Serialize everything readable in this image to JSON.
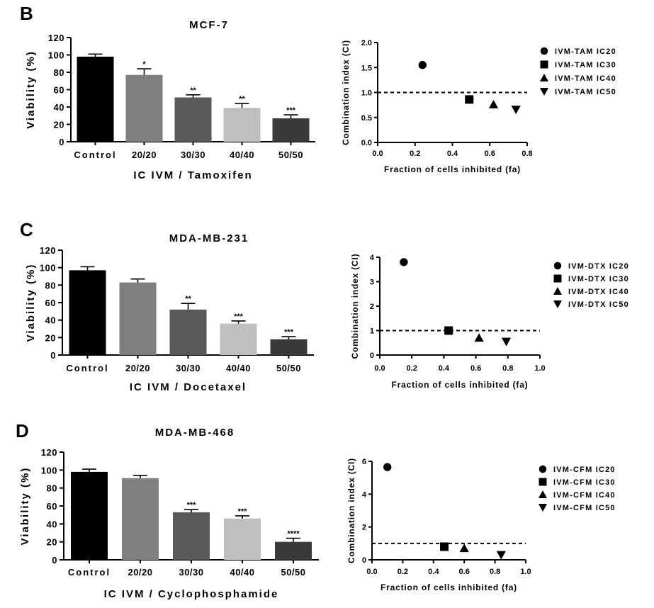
{
  "chart_data": [
    {
      "type": "bar",
      "panel_label": "B",
      "title": "MCF-7",
      "categories": [
        "Control",
        "20/20",
        "30/30",
        "40/40",
        "50/50"
      ],
      "values": [
        98,
        77,
        51,
        39,
        27
      ],
      "errors": [
        3,
        7,
        3,
        5,
        4
      ],
      "significance": [
        "",
        "*",
        "**",
        "**",
        "***"
      ],
      "colors": [
        "#000000",
        "#7f7f7f",
        "#595959",
        "#bfbfbf",
        "#3a3a3a"
      ],
      "xlabel": "IC IVM / Tamoxifen",
      "ylabel": "Viability (%)",
      "ylim": [
        0,
        120
      ],
      "yticks": [
        "0",
        "20",
        "40",
        "60",
        "80",
        "100",
        "120"
      ]
    },
    {
      "type": "scatter",
      "panel_label": "B",
      "xlabel": "Fraction of cells inhibited (fa)",
      "ylabel": "Combination index (CI)",
      "xlim": [
        0,
        0.8
      ],
      "ylim": [
        0,
        2.0
      ],
      "xticks": [
        "0.0",
        "0.2",
        "0.4",
        "0.6",
        "0.8"
      ],
      "yticks": [
        "0.0",
        "0.5",
        "1.0",
        "1.5",
        "2.0"
      ],
      "reference_line": 1.0,
      "points": [
        {
          "label": "IVM-TAM IC20",
          "marker": "circle",
          "x": 0.24,
          "y": 1.55
        },
        {
          "label": "IVM-TAM IC30",
          "marker": "square",
          "x": 0.49,
          "y": 0.86
        },
        {
          "label": "IVM-TAM IC40",
          "marker": "triangle-up",
          "x": 0.62,
          "y": 0.76
        },
        {
          "label": "IVM-TAM IC50",
          "marker": "triangle-down",
          "x": 0.74,
          "y": 0.66
        }
      ]
    },
    {
      "type": "bar",
      "panel_label": "C",
      "title": "MDA-MB-231",
      "categories": [
        "Control",
        "20/20",
        "30/30",
        "40/40",
        "50/50"
      ],
      "values": [
        97,
        83,
        52,
        36,
        18
      ],
      "errors": [
        4,
        4,
        7,
        3,
        3
      ],
      "significance": [
        "",
        "",
        "**",
        "***",
        "***"
      ],
      "colors": [
        "#000000",
        "#7f7f7f",
        "#595959",
        "#bfbfbf",
        "#3a3a3a"
      ],
      "xlabel": "IC IVM / Docetaxel",
      "ylabel": "Viability (%)",
      "ylim": [
        0,
        120
      ],
      "yticks": [
        "0",
        "20",
        "40",
        "60",
        "80",
        "100",
        "120"
      ]
    },
    {
      "type": "scatter",
      "panel_label": "C",
      "xlabel": "Fraction of cells inhibited (fa)",
      "ylabel": "Combination index (CI)",
      "xlim": [
        0,
        1.0
      ],
      "ylim": [
        0,
        4
      ],
      "xticks": [
        "0.0",
        "0.2",
        "0.4",
        "0.6",
        "0.8",
        "1.0"
      ],
      "yticks": [
        "0",
        "1",
        "2",
        "3",
        "4"
      ],
      "reference_line": 1,
      "points": [
        {
          "label": "IVM-DTX IC20",
          "marker": "circle",
          "x": 0.15,
          "y": 3.8
        },
        {
          "label": "IVM-DTX IC30",
          "marker": "square",
          "x": 0.43,
          "y": 1.0
        },
        {
          "label": "IVM-DTX IC40",
          "marker": "triangle-up",
          "x": 0.62,
          "y": 0.7
        },
        {
          "label": "IVM-DTX IC50",
          "marker": "triangle-down",
          "x": 0.79,
          "y": 0.55
        }
      ]
    },
    {
      "type": "bar",
      "panel_label": "D",
      "title": "MDA-MB-468",
      "categories": [
        "Control",
        "20/20",
        "30/30",
        "40/40",
        "50/50"
      ],
      "values": [
        98,
        91,
        53,
        46,
        20
      ],
      "errors": [
        3,
        3,
        3,
        3,
        4
      ],
      "significance": [
        "",
        "",
        "***",
        "***",
        "****"
      ],
      "colors": [
        "#000000",
        "#7f7f7f",
        "#595959",
        "#bfbfbf",
        "#3a3a3a"
      ],
      "xlabel": "IC IVM / Cyclophosphamide",
      "ylabel": "Viability (%)",
      "ylim": [
        0,
        120
      ],
      "yticks": [
        "0",
        "20",
        "40",
        "60",
        "80",
        "100",
        "120"
      ]
    },
    {
      "type": "scatter",
      "panel_label": "D",
      "xlabel": "Fraction of cells inhibited (fa)",
      "ylabel": "Combination index (CI)",
      "xlim": [
        0,
        1.0
      ],
      "ylim": [
        0,
        6
      ],
      "xticks": [
        "0.0",
        "0.2",
        "0.4",
        "0.6",
        "0.8",
        "1.0"
      ],
      "yticks": [
        "0",
        "2",
        "4",
        "6"
      ],
      "reference_line": 1,
      "points": [
        {
          "label": "IVM-CFM IC20",
          "marker": "circle",
          "x": 0.1,
          "y": 5.65
        },
        {
          "label": "IVM-CFM IC30",
          "marker": "square",
          "x": 0.47,
          "y": 0.8
        },
        {
          "label": "IVM-CFM IC40",
          "marker": "triangle-up",
          "x": 0.6,
          "y": 0.7
        },
        {
          "label": "IVM-CFM IC50",
          "marker": "triangle-down",
          "x": 0.84,
          "y": 0.3
        }
      ]
    }
  ]
}
